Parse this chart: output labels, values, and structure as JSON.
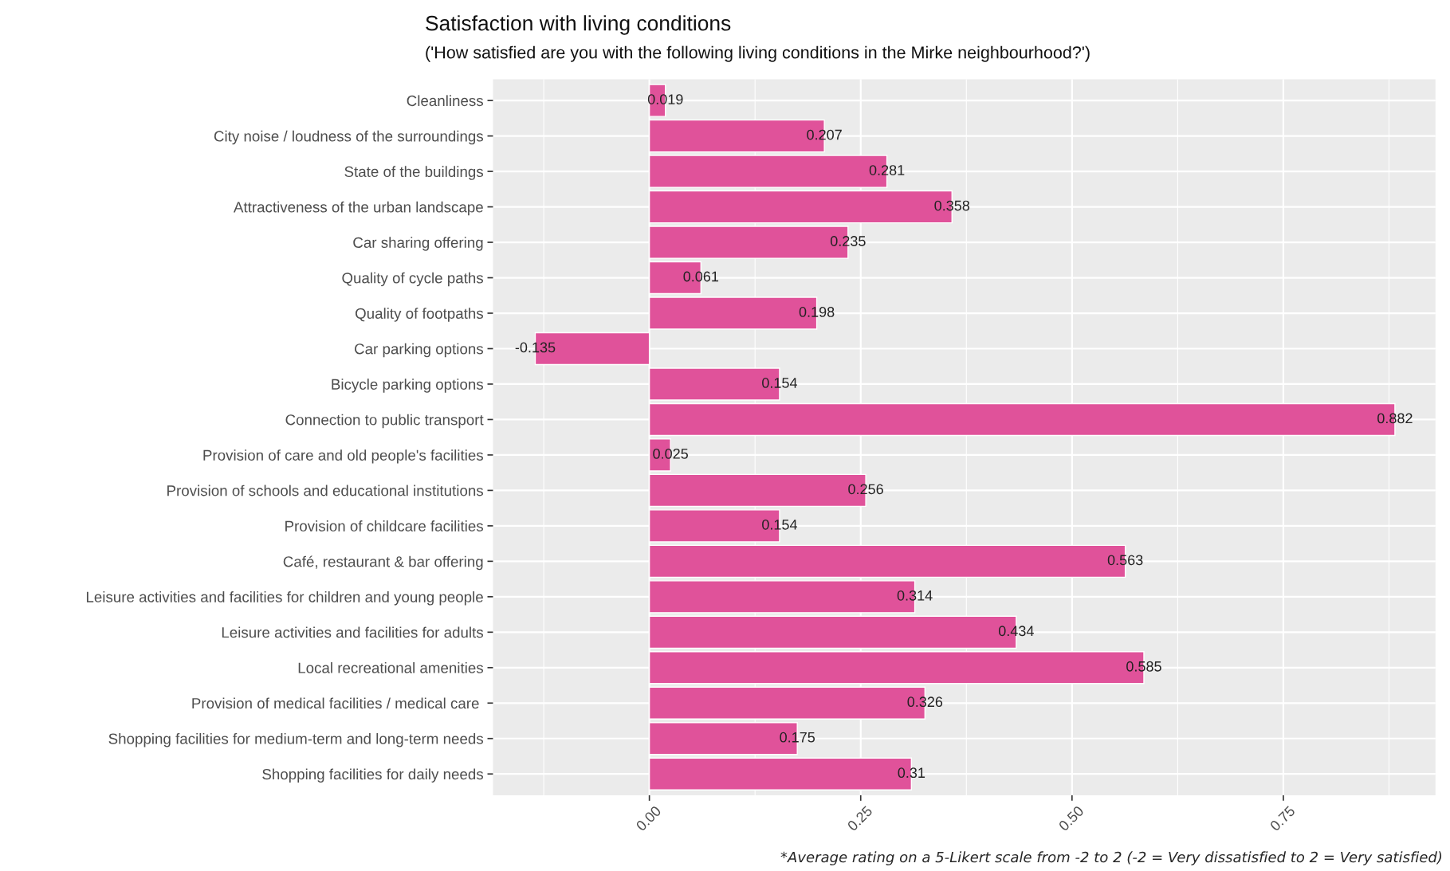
{
  "chart_data": {
    "type": "bar",
    "orientation": "horizontal",
    "title": "Satisfaction with living conditions",
    "subtitle": "('How satisfied are you with the following living conditions in the Mirke neighbourhood?')",
    "categories": [
      "Cleanliness",
      "City noise / loudness of the surroundings",
      "State of the buildings",
      "Attractiveness of the urban landscape",
      "Car sharing offering",
      "Quality of cycle paths",
      "Quality of footpaths",
      "Car parking options",
      "Bicycle parking options",
      "Connection to public transport",
      "Provision of care and old people's facilities",
      "Provision of schools and educational institutions",
      "Provision of childcare facilities",
      "Café, restaurant & bar offering",
      "Leisure activities and facilities for children and young people",
      "Leisure activities and facilities for adults",
      "Local recreational amenities",
      "Provision of medical facilities / medical care ",
      "Shopping facilities for medium-term and long-term needs",
      "Shopping facilities for daily needs"
    ],
    "values": [
      0.019,
      0.207,
      0.281,
      0.358,
      0.235,
      0.061,
      0.198,
      -0.135,
      0.154,
      0.882,
      0.025,
      0.256,
      0.154,
      0.563,
      0.314,
      0.434,
      0.585,
      0.326,
      0.175,
      0.31
    ],
    "color": "#e0529a",
    "data_labels": true,
    "xlim": [
      -0.185,
      0.93
    ],
    "xticks": [
      {
        "value": 0,
        "label": "0.00"
      },
      {
        "value": 0.25,
        "label": "0.25"
      },
      {
        "value": 0.5,
        "label": "0.50"
      },
      {
        "value": 0.75,
        "label": "0.75"
      }
    ],
    "grid": true,
    "annotations": [
      "*Average rating on a 5-Likert scale from -2 to 2 (-2 = Very dissatisfied to 2 = Very satisfied)"
    ]
  }
}
